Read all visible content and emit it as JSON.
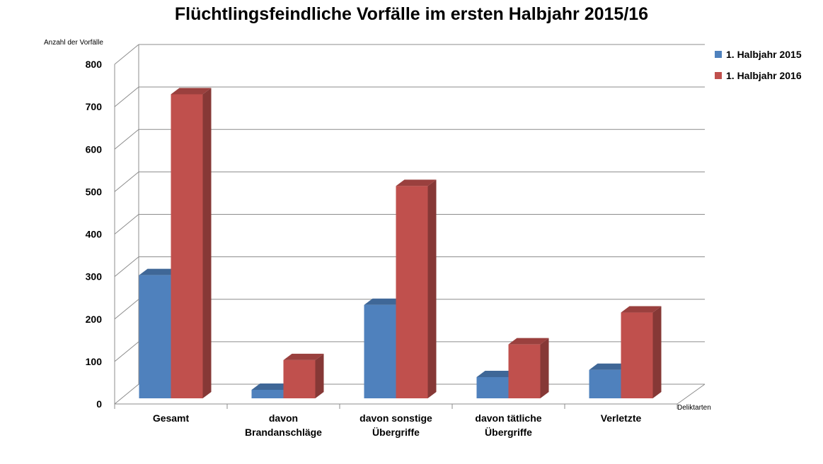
{
  "chart_data": {
    "type": "bar",
    "title": "Flüchtlingsfeindliche Vorfälle im ersten Halbjahr 2015/16",
    "ylabel": "Anzahl der Vorfälle",
    "xlabel": "Deliktarten",
    "ylim": [
      0,
      800
    ],
    "yticks": [
      "0",
      "100",
      "200",
      "300",
      "400",
      "500",
      "600",
      "700",
      "800"
    ],
    "grid": true,
    "three_d": true,
    "legend_position": "top-right",
    "categories": [
      [
        "Gesamt"
      ],
      [
        "davon",
        "Brandanschläge"
      ],
      [
        "davon sonstige",
        "Übergriffe"
      ],
      [
        "davon tätliche",
        "Übergriffe"
      ],
      [
        "Verletzte"
      ]
    ],
    "series": [
      {
        "name": "1. Halbjahr 2015",
        "color": "#4F81BD",
        "values": [
          290,
          20,
          220,
          50,
          67
        ]
      },
      {
        "name": "1. Halbjahr 2016",
        "color": "#C0504D",
        "values": [
          716,
          90,
          500,
          127,
          202
        ]
      }
    ]
  }
}
